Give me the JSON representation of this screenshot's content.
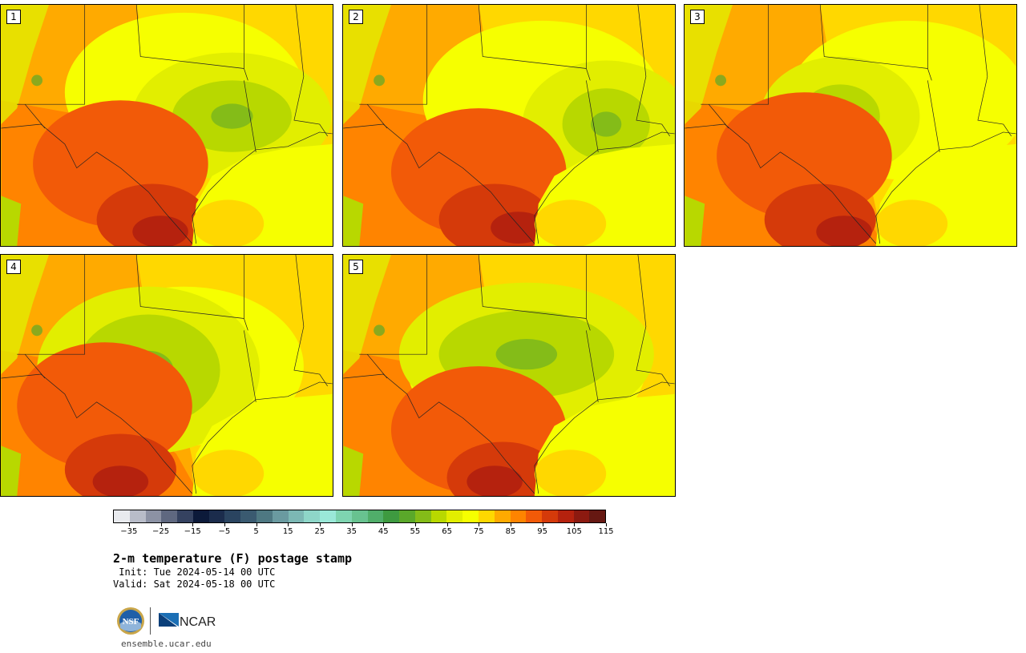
{
  "panels": [
    {
      "label": "1",
      "pattern": 0
    },
    {
      "label": "2",
      "pattern": 1
    },
    {
      "label": "3",
      "pattern": 2
    },
    {
      "label": "4",
      "pattern": 3
    },
    {
      "label": "5",
      "pattern": 4
    }
  ],
  "colorbar": {
    "ticks": [
      "−35",
      "−25",
      "−15",
      "−5",
      "5",
      "15",
      "25",
      "35",
      "45",
      "55",
      "65",
      "75",
      "85",
      "95",
      "105",
      "115"
    ],
    "colors": [
      "#e8eaee",
      "#b8bcc8",
      "#8c92a4",
      "#5f6880",
      "#354260",
      "#0c1a3a",
      "#1b2c4c",
      "#2a4460",
      "#3a5a70",
      "#4e7882",
      "#6a9aa0",
      "#7cb8b4",
      "#8ed6c8",
      "#9ae8d8",
      "#7ed4b0",
      "#68c290",
      "#50ae6a",
      "#3e9a40",
      "#5aa82a",
      "#84bc18",
      "#b8d800",
      "#e2ee00",
      "#f6ff00",
      "#ffd800",
      "#ffaa00",
      "#ff8400",
      "#f25a08",
      "#d53a0a",
      "#b5220e",
      "#8c1a10",
      "#661812"
    ]
  },
  "title": "2-m temperature (F) postage stamp",
  "init": " Init: Tue 2024-05-14 00 UTC",
  "valid": "Valid: Sat 2024-05-18 00 UTC",
  "logos": {
    "nsf": "NSF",
    "ncar": "NCAR"
  },
  "site": "ensemble.ucar.edu"
}
